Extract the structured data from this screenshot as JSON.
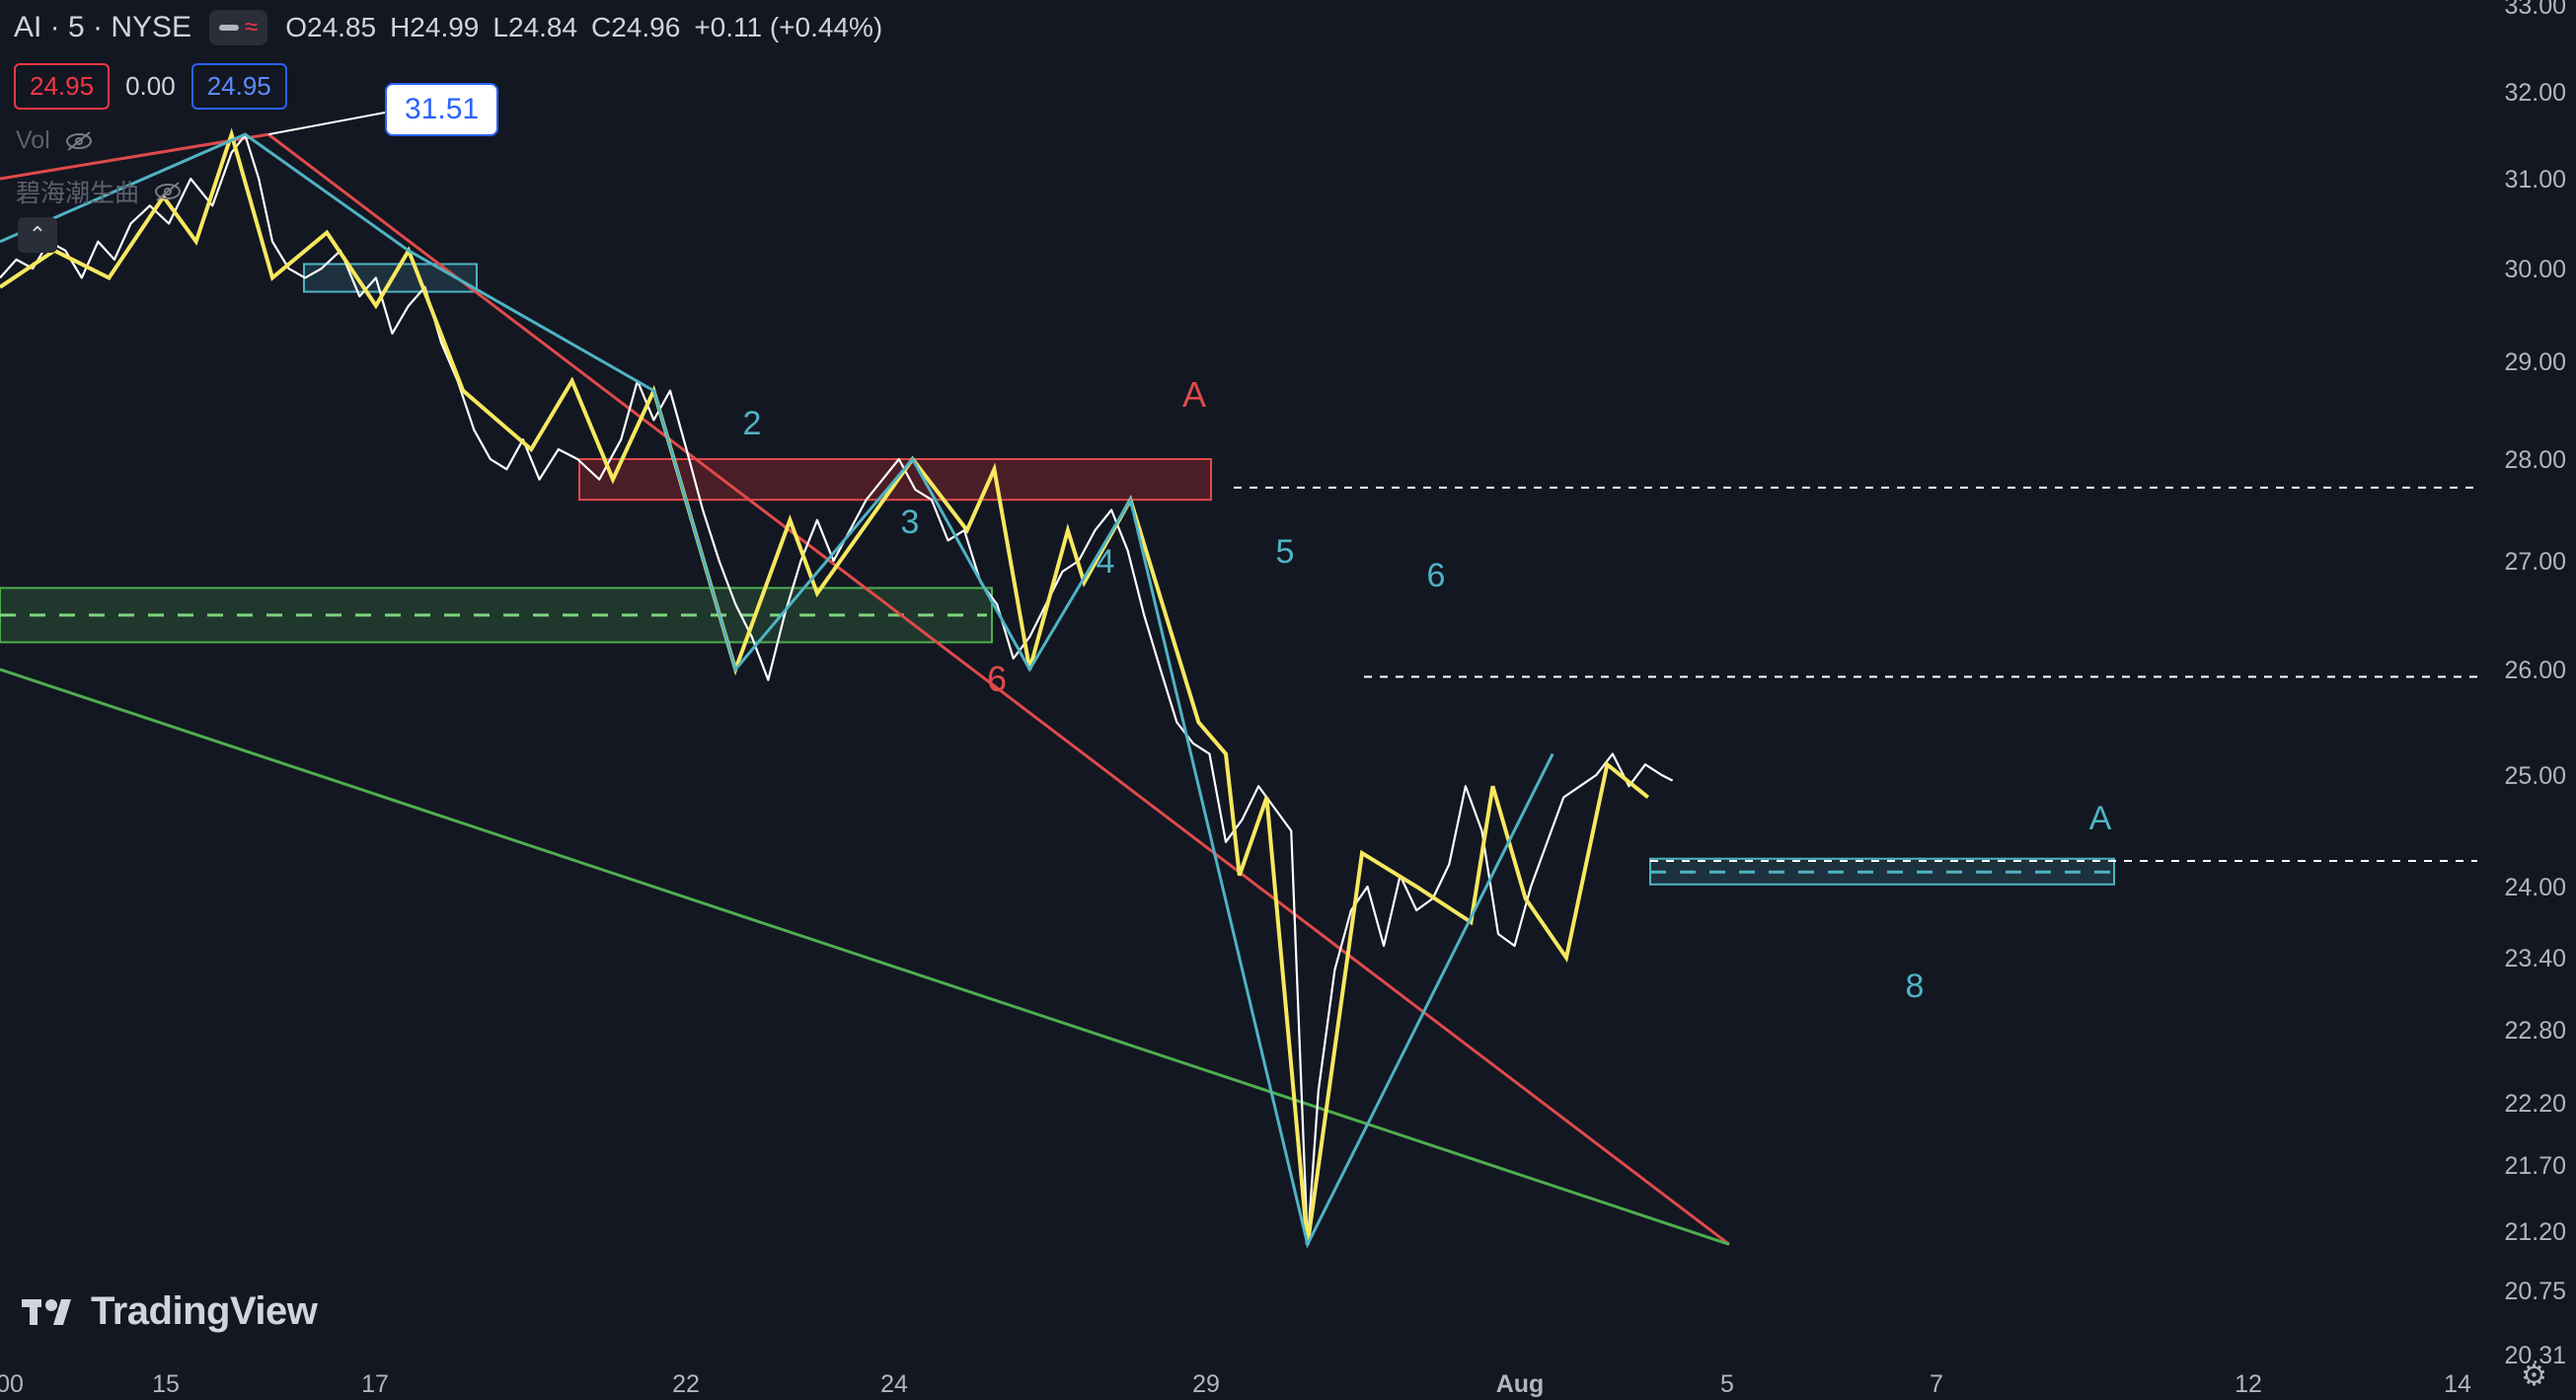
{
  "header": {
    "symbol": "AI",
    "interval": "5",
    "exchange": "NYSE",
    "symbol_line": "AI · 5 · NYSE",
    "open": "O24.85",
    "high": "H24.99",
    "low": "L24.84",
    "close": "C24.96",
    "change": "+0.11 (+0.44%)"
  },
  "price_boxes": {
    "bid": "24.95",
    "spread": "0.00",
    "ask": "24.95"
  },
  "indicators": [
    {
      "label": "Vol"
    },
    {
      "label": "碧海潮生曲"
    }
  ],
  "brand": {
    "name": "TradingView"
  },
  "colors": {
    "background": "#131722",
    "price_white": "#ffffff",
    "zigzag_yellow": "#f7e85e",
    "teal": "#4fb3c4",
    "red": "#e04a4a",
    "green": "#4fae4f"
  },
  "chart_data": {
    "type": "line",
    "symbol": "AI",
    "timeframe": "5",
    "x_labels": [
      "00",
      "15",
      "17",
      "22",
      "24",
      "29",
      "Aug",
      "5",
      "7",
      "12",
      "14"
    ],
    "y_ticks": [
      33.0,
      32.0,
      31.0,
      30.0,
      29.0,
      28.0,
      27.0,
      26.0,
      25.0,
      24.0,
      23.4,
      22.8,
      22.2,
      21.7,
      21.2,
      20.75,
      20.31
    ],
    "y_tick_labels": [
      "33.00",
      "32.00",
      "31.00",
      "30.00",
      "29.00",
      "28.00",
      "27.00",
      "26.00",
      "25.00",
      "24.00",
      "23.40",
      "22.80",
      "22.20",
      "21.70",
      "21.20",
      "20.75",
      "20.31"
    ],
    "price_series": [
      [
        0,
        29.9
      ],
      [
        6,
        30.1
      ],
      [
        12,
        30.0
      ],
      [
        18,
        30.3
      ],
      [
        24,
        30.2
      ],
      [
        30,
        29.9
      ],
      [
        36,
        30.3
      ],
      [
        42,
        30.1
      ],
      [
        48,
        30.5
      ],
      [
        55,
        30.7
      ],
      [
        62,
        30.5
      ],
      [
        70,
        31.0
      ],
      [
        78,
        30.7
      ],
      [
        85,
        31.3
      ],
      [
        90,
        31.5
      ],
      [
        95,
        31.0
      ],
      [
        100,
        30.3
      ],
      [
        106,
        30.0
      ],
      [
        112,
        29.9
      ],
      [
        118,
        30.0
      ],
      [
        125,
        30.2
      ],
      [
        132,
        29.7
      ],
      [
        138,
        29.9
      ],
      [
        144,
        29.3
      ],
      [
        150,
        29.6
      ],
      [
        156,
        29.8
      ],
      [
        162,
        29.2
      ],
      [
        168,
        28.8
      ],
      [
        174,
        28.3
      ],
      [
        180,
        28.0
      ],
      [
        186,
        27.9
      ],
      [
        192,
        28.2
      ],
      [
        198,
        27.8
      ],
      [
        205,
        28.1
      ],
      [
        212,
        28.0
      ],
      [
        220,
        27.8
      ],
      [
        228,
        28.2
      ],
      [
        234,
        28.8
      ],
      [
        240,
        28.4
      ],
      [
        246,
        28.7
      ],
      [
        252,
        28.1
      ],
      [
        258,
        27.5
      ],
      [
        264,
        27.0
      ],
      [
        270,
        26.6
      ],
      [
        276,
        26.3
      ],
      [
        282,
        25.9
      ],
      [
        288,
        26.5
      ],
      [
        294,
        27.0
      ],
      [
        300,
        27.4
      ],
      [
        306,
        27.0
      ],
      [
        312,
        27.3
      ],
      [
        318,
        27.6
      ],
      [
        324,
        27.8
      ],
      [
        330,
        28.0
      ],
      [
        336,
        27.7
      ],
      [
        342,
        27.6
      ],
      [
        348,
        27.2
      ],
      [
        354,
        27.3
      ],
      [
        360,
        26.8
      ],
      [
        366,
        26.6
      ],
      [
        372,
        26.1
      ],
      [
        378,
        26.3
      ],
      [
        384,
        26.6
      ],
      [
        390,
        26.9
      ],
      [
        396,
        27.0
      ],
      [
        402,
        27.3
      ],
      [
        408,
        27.5
      ],
      [
        414,
        27.1
      ],
      [
        420,
        26.5
      ],
      [
        426,
        26.0
      ],
      [
        432,
        25.5
      ],
      [
        438,
        25.3
      ],
      [
        444,
        25.2
      ],
      [
        450,
        24.4
      ],
      [
        456,
        24.6
      ],
      [
        462,
        24.9
      ],
      [
        468,
        24.7
      ],
      [
        474,
        24.5
      ],
      [
        480,
        21.1
      ],
      [
        484,
        22.3
      ],
      [
        490,
        23.3
      ],
      [
        496,
        23.8
      ],
      [
        502,
        24.0
      ],
      [
        508,
        23.5
      ],
      [
        514,
        24.1
      ],
      [
        520,
        23.8
      ],
      [
        526,
        23.9
      ],
      [
        532,
        24.2
      ],
      [
        538,
        24.9
      ],
      [
        544,
        24.5
      ],
      [
        550,
        23.6
      ],
      [
        556,
        23.5
      ],
      [
        562,
        24.0
      ],
      [
        568,
        24.4
      ],
      [
        574,
        24.8
      ],
      [
        580,
        24.9
      ],
      [
        586,
        25.0
      ],
      [
        592,
        25.2
      ],
      [
        598,
        24.9
      ],
      [
        604,
        25.1
      ],
      [
        610,
        25.0
      ],
      [
        614,
        24.95
      ]
    ],
    "zigzag_yellow": [
      [
        0,
        29.8
      ],
      [
        20,
        30.2
      ],
      [
        40,
        29.9
      ],
      [
        60,
        30.8
      ],
      [
        72,
        30.3
      ],
      [
        85,
        31.51
      ],
      [
        100,
        29.9
      ],
      [
        120,
        30.4
      ],
      [
        138,
        29.6
      ],
      [
        150,
        30.2
      ],
      [
        170,
        28.7
      ],
      [
        195,
        28.1
      ],
      [
        210,
        28.8
      ],
      [
        225,
        27.8
      ],
      [
        240,
        28.7
      ],
      [
        270,
        26.0
      ],
      [
        290,
        27.4
      ],
      [
        300,
        26.7
      ],
      [
        335,
        28.0
      ],
      [
        355,
        27.3
      ],
      [
        365,
        27.9
      ],
      [
        378,
        26.0
      ],
      [
        392,
        27.3
      ],
      [
        398,
        26.8
      ],
      [
        415,
        27.6
      ],
      [
        440,
        25.5
      ],
      [
        450,
        25.2
      ],
      [
        455,
        24.1
      ],
      [
        465,
        24.8
      ],
      [
        480,
        21.1
      ],
      [
        500,
        24.3
      ],
      [
        520,
        24.0
      ],
      [
        540,
        23.7
      ],
      [
        548,
        24.9
      ],
      [
        560,
        23.9
      ],
      [
        575,
        23.4
      ],
      [
        590,
        25.1
      ],
      [
        605,
        24.8
      ]
    ],
    "annotations": {
      "labels_red": [
        "A",
        "6"
      ],
      "labels_teal": [
        "2",
        "3",
        "4",
        "5",
        "6",
        "8",
        "A"
      ],
      "price_tooltip": "31.51",
      "horizontal_levels": [
        "27.72",
        "25.93",
        "24.23"
      ]
    }
  }
}
